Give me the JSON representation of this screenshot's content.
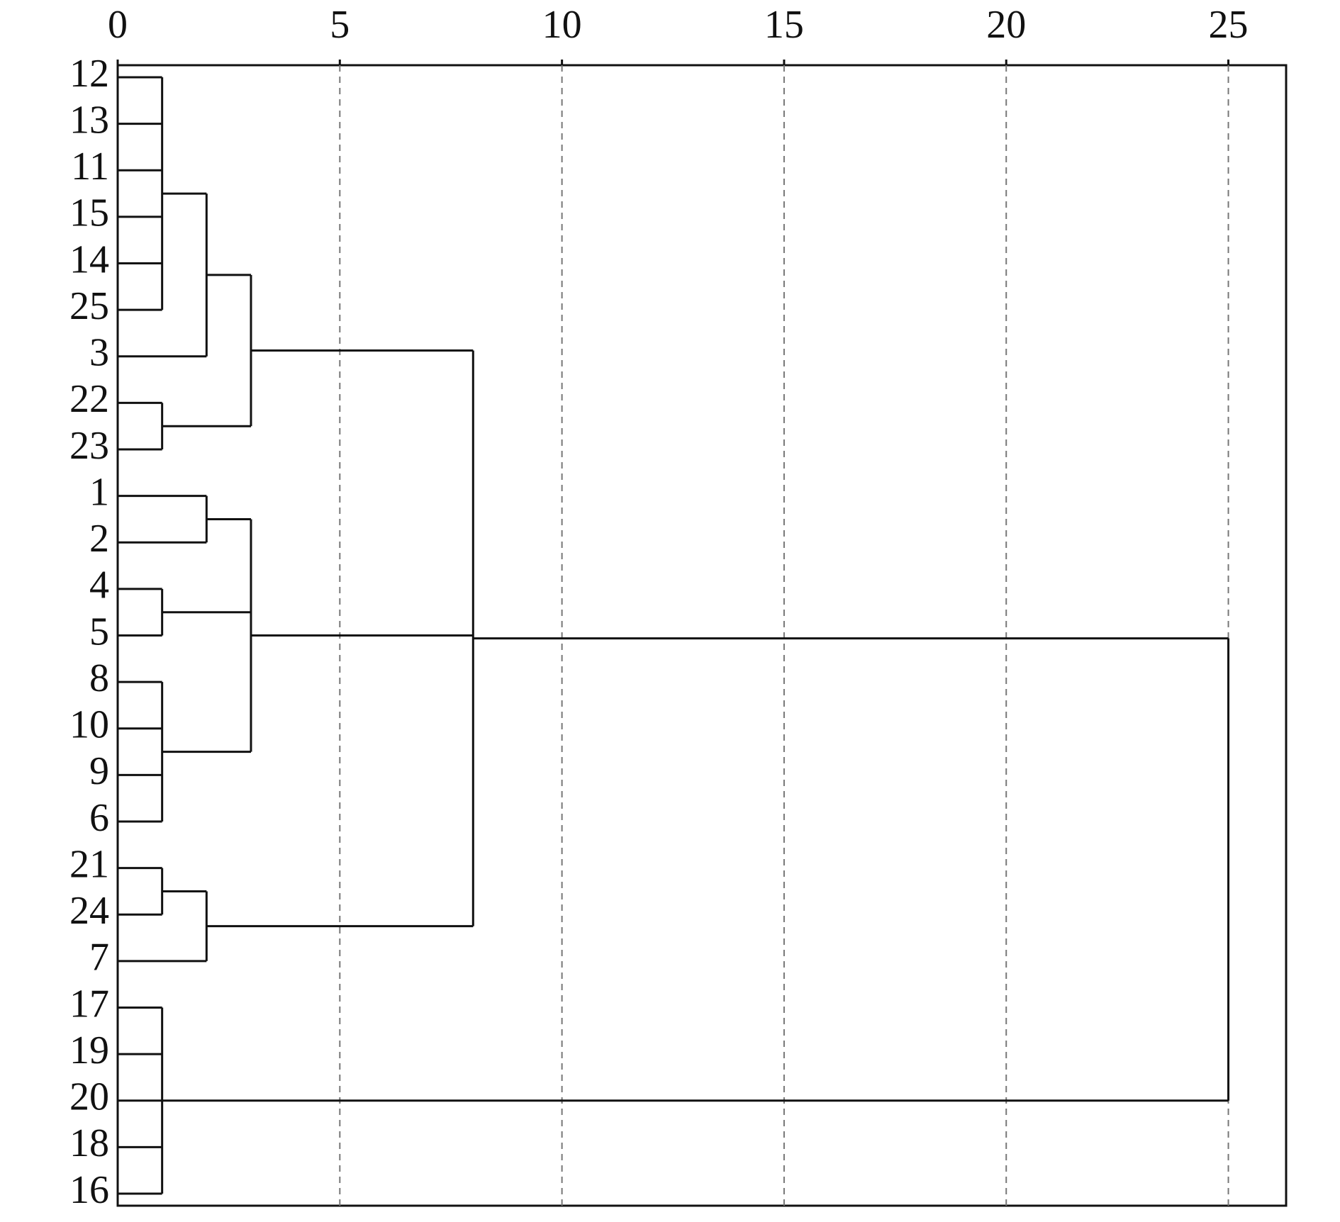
{
  "chart_data": {
    "type": "dendrogram",
    "orientation": "horizontal",
    "xlim": [
      0,
      26.3
    ],
    "xticks": [
      0,
      5,
      10,
      15,
      20,
      25
    ],
    "grid": true,
    "color": "#111111",
    "tree": {
      "height": 25,
      "children": [
        {
          "height": 8,
          "children": [
            {
              "height": 3,
              "children": [
                {
                  "height": 2,
                  "children": [
                    {
                      "height": 1,
                      "children": [
                        "12",
                        "13",
                        "11",
                        "15",
                        "14",
                        "25"
                      ]
                    },
                    "3"
                  ]
                },
                {
                  "height": 1,
                  "children": [
                    "22",
                    "23"
                  ]
                }
              ]
            },
            {
              "height": 3,
              "children": [
                {
                  "height": 2,
                  "children": [
                    "1",
                    "2"
                  ]
                },
                {
                  "height": 1,
                  "children": [
                    "4",
                    "5"
                  ]
                },
                {
                  "height": 1,
                  "children": [
                    "8",
                    "10",
                    "9",
                    "6"
                  ]
                }
              ]
            },
            {
              "height": 2,
              "children": [
                {
                  "height": 1,
                  "children": [
                    "21",
                    "24"
                  ]
                },
                "7"
              ]
            }
          ]
        },
        {
          "height": 1,
          "children": [
            "17",
            "19",
            "20",
            "18",
            "16"
          ]
        }
      ]
    }
  }
}
